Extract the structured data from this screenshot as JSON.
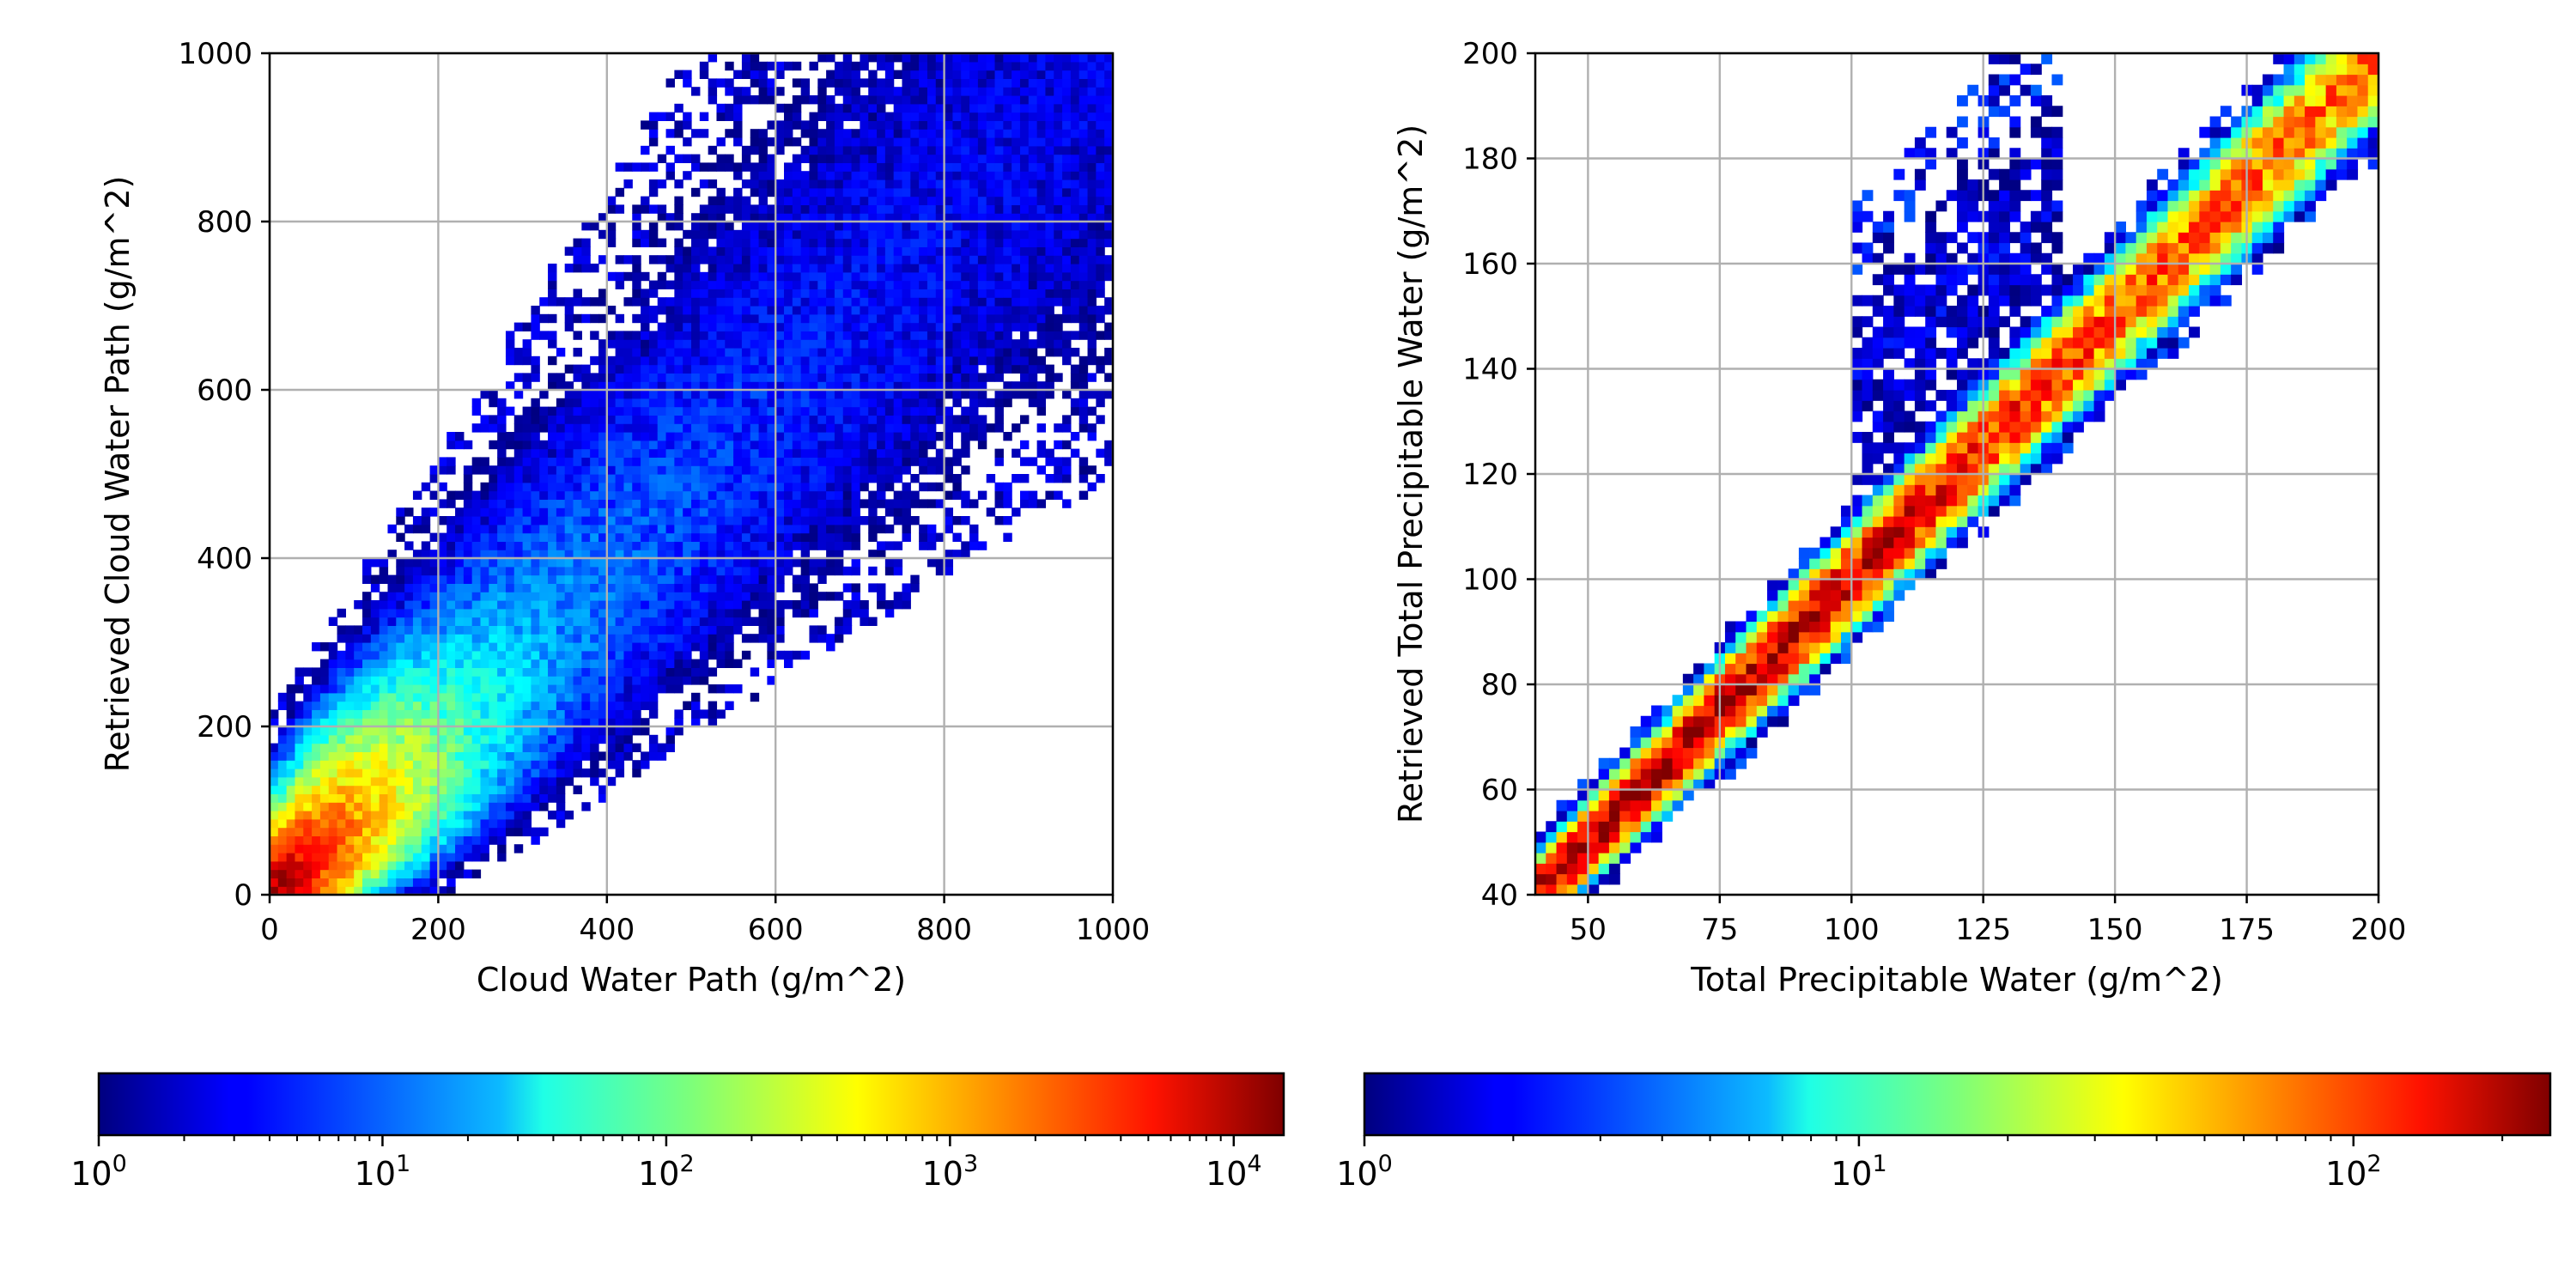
{
  "chart_data": [
    {
      "type": "heatmap",
      "xlabel": "Cloud Water Path (g/m^2)",
      "ylabel": "Retrieved Cloud Water Path (g/m^2)",
      "xlim": [
        0,
        1000
      ],
      "ylim": [
        0,
        1000
      ],
      "xticks": [
        0,
        200,
        400,
        600,
        800,
        1000
      ],
      "yticks": [
        0,
        200,
        400,
        600,
        800,
        1000
      ],
      "grid": true,
      "bins": 100,
      "density": {
        "peak_count": 15000,
        "ridge": "y = x",
        "description_values": [
          {
            "x": 10,
            "y": 10,
            "count": 15000
          },
          {
            "x": 100,
            "y": 100,
            "count": 1000
          },
          {
            "x": 200,
            "y": 200,
            "count": 300
          },
          {
            "x": 400,
            "y": 400,
            "count": 30
          },
          {
            "x": 600,
            "y": 600,
            "count": 10
          },
          {
            "x": 800,
            "y": 800,
            "count": 3
          }
        ]
      },
      "colorbar": {
        "scale": "log",
        "min": 1,
        "max": 15000,
        "colormap": "jet",
        "ticks": [
          {
            "base": "10",
            "exp": "0",
            "value": 1
          },
          {
            "base": "10",
            "exp": "1",
            "value": 10
          },
          {
            "base": "10",
            "exp": "2",
            "value": 100
          },
          {
            "base": "10",
            "exp": "3",
            "value": 1000
          },
          {
            "base": "10",
            "exp": "4",
            "value": 10000
          }
        ]
      }
    },
    {
      "type": "heatmap",
      "xlabel": "Total Precipitable Water (g/m^2)",
      "ylabel": "Retrieved Total Precipitable Water (g/m^2)",
      "xlim": [
        40,
        200
      ],
      "ylim": [
        40,
        200
      ],
      "xticks": [
        50,
        75,
        100,
        125,
        150,
        175,
        200
      ],
      "yticks": [
        40,
        60,
        80,
        100,
        120,
        140,
        160,
        180,
        200
      ],
      "grid": true,
      "bins": 80,
      "density": {
        "peak_count": 250,
        "ridge": "y = x",
        "description_values": [
          {
            "x": 45,
            "y": 45,
            "count": 60
          },
          {
            "x": 60,
            "y": 60,
            "count": 150
          },
          {
            "x": 85,
            "y": 85,
            "count": 200
          },
          {
            "x": 140,
            "y": 140,
            "count": 120
          },
          {
            "x": 185,
            "y": 185,
            "count": 40
          }
        ]
      },
      "colorbar": {
        "scale": "log",
        "min": 1,
        "max": 250,
        "colormap": "jet",
        "ticks": [
          {
            "base": "10",
            "exp": "0",
            "value": 1
          },
          {
            "base": "10",
            "exp": "1",
            "value": 10
          },
          {
            "base": "10",
            "exp": "2",
            "value": 100
          }
        ]
      }
    }
  ]
}
